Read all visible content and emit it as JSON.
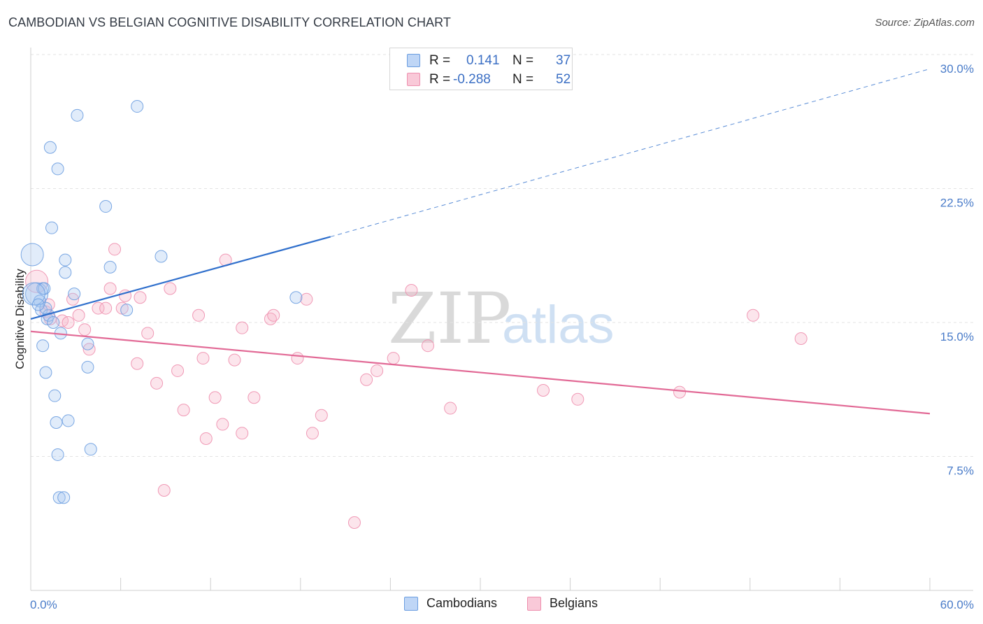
{
  "header": {
    "title": "CAMBODIAN VS BELGIAN COGNITIVE DISABILITY CORRELATION CHART",
    "source": "Source: ZipAtlas.com"
  },
  "legend": {
    "r_label": "R =",
    "n_label": "N =",
    "cambodians": {
      "r": "0.141",
      "n": "37"
    },
    "belgians": {
      "r": "-0.288",
      "n": "52"
    }
  },
  "watermark": {
    "zip": "ZIP",
    "atlas": "atlas"
  },
  "chart_data": {
    "type": "scatter",
    "xlabel": "",
    "ylabel": "Cognitive Disability",
    "xlim": [
      0,
      60
    ],
    "ylim": [
      0,
      30
    ],
    "x_tick_labels": {
      "min": "0.0%",
      "max": "60.0%"
    },
    "y_ticks": [
      7.5,
      15.0,
      22.5,
      30.0
    ],
    "y_tick_labels": [
      "7.5%",
      "15.0%",
      "22.5%",
      "30.0%"
    ],
    "grid": true,
    "colors": {
      "cambodians": "#6b9de0",
      "belgians": "#ee8fae",
      "cambodians_line": "#2f6fcc",
      "belgians_line": "#e26a96"
    },
    "series": [
      {
        "name": "Cambodians",
        "points": [
          [
            0.1,
            18.8
          ],
          [
            0.4,
            16.6
          ],
          [
            0.6,
            16.2
          ],
          [
            0.7,
            15.7
          ],
          [
            0.8,
            16.9
          ],
          [
            0.8,
            13.7
          ],
          [
            0.9,
            16.9
          ],
          [
            1.0,
            12.2
          ],
          [
            1.1,
            15.2
          ],
          [
            1.2,
            15.4
          ],
          [
            1.3,
            24.8
          ],
          [
            1.4,
            20.3
          ],
          [
            1.5,
            15.0
          ],
          [
            1.6,
            10.9
          ],
          [
            1.7,
            9.4
          ],
          [
            1.8,
            7.6
          ],
          [
            1.8,
            23.6
          ],
          [
            1.9,
            5.2
          ],
          [
            2.0,
            14.4
          ],
          [
            2.2,
            5.2
          ],
          [
            2.3,
            17.8
          ],
          [
            2.3,
            18.5
          ],
          [
            2.5,
            9.5
          ],
          [
            2.9,
            16.6
          ],
          [
            3.1,
            26.6
          ],
          [
            3.8,
            13.8
          ],
          [
            3.8,
            12.5
          ],
          [
            4.0,
            7.9
          ],
          [
            5.0,
            21.5
          ],
          [
            5.3,
            18.1
          ],
          [
            6.4,
            15.7
          ],
          [
            7.1,
            27.1
          ],
          [
            8.7,
            18.7
          ],
          [
            17.7,
            16.4
          ],
          [
            0.2,
            16.6
          ],
          [
            1.0,
            15.8
          ],
          [
            0.5,
            16.0
          ]
        ],
        "trend": {
          "x": [
            0,
            20
          ],
          "y": [
            15.2,
            19.8
          ],
          "extension_x": [
            20,
            60
          ],
          "extension_y": [
            19.8,
            29.2
          ]
        }
      },
      {
        "name": "Belgians",
        "points": [
          [
            0.4,
            17.3
          ],
          [
            1.0,
            15.6
          ],
          [
            1.3,
            15.2
          ],
          [
            2.1,
            15.1
          ],
          [
            2.5,
            15.0
          ],
          [
            2.8,
            16.3
          ],
          [
            3.2,
            15.4
          ],
          [
            3.6,
            14.6
          ],
          [
            3.9,
            13.5
          ],
          [
            4.5,
            15.8
          ],
          [
            5.0,
            15.8
          ],
          [
            5.3,
            16.9
          ],
          [
            5.6,
            19.1
          ],
          [
            6.1,
            15.8
          ],
          [
            6.3,
            16.5
          ],
          [
            7.1,
            12.7
          ],
          [
            7.3,
            16.4
          ],
          [
            7.8,
            14.4
          ],
          [
            8.4,
            11.6
          ],
          [
            8.9,
            5.6
          ],
          [
            9.3,
            16.9
          ],
          [
            9.8,
            12.3
          ],
          [
            10.2,
            10.1
          ],
          [
            11.2,
            15.4
          ],
          [
            11.5,
            13.0
          ],
          [
            11.7,
            8.5
          ],
          [
            12.3,
            10.8
          ],
          [
            12.8,
            9.3
          ],
          [
            13.0,
            18.5
          ],
          [
            13.6,
            12.9
          ],
          [
            14.1,
            8.8
          ],
          [
            14.1,
            14.7
          ],
          [
            14.9,
            10.8
          ],
          [
            16.0,
            15.2
          ],
          [
            16.2,
            15.4
          ],
          [
            17.8,
            13.0
          ],
          [
            18.4,
            16.3
          ],
          [
            18.8,
            8.8
          ],
          [
            19.4,
            9.8
          ],
          [
            21.6,
            3.8
          ],
          [
            22.4,
            11.8
          ],
          [
            23.1,
            12.3
          ],
          [
            24.2,
            13.0
          ],
          [
            25.4,
            16.8
          ],
          [
            26.5,
            13.7
          ],
          [
            28.0,
            10.2
          ],
          [
            34.2,
            11.2
          ],
          [
            36.5,
            10.7
          ],
          [
            43.3,
            11.1
          ],
          [
            48.2,
            15.4
          ],
          [
            51.4,
            14.1
          ],
          [
            1.2,
            16.0
          ]
        ],
        "trend": {
          "x": [
            0,
            60
          ],
          "y": [
            14.5,
            9.9
          ]
        }
      }
    ]
  },
  "bottom_legend": {
    "cambodians": "Cambodians",
    "belgians": "Belgians"
  }
}
